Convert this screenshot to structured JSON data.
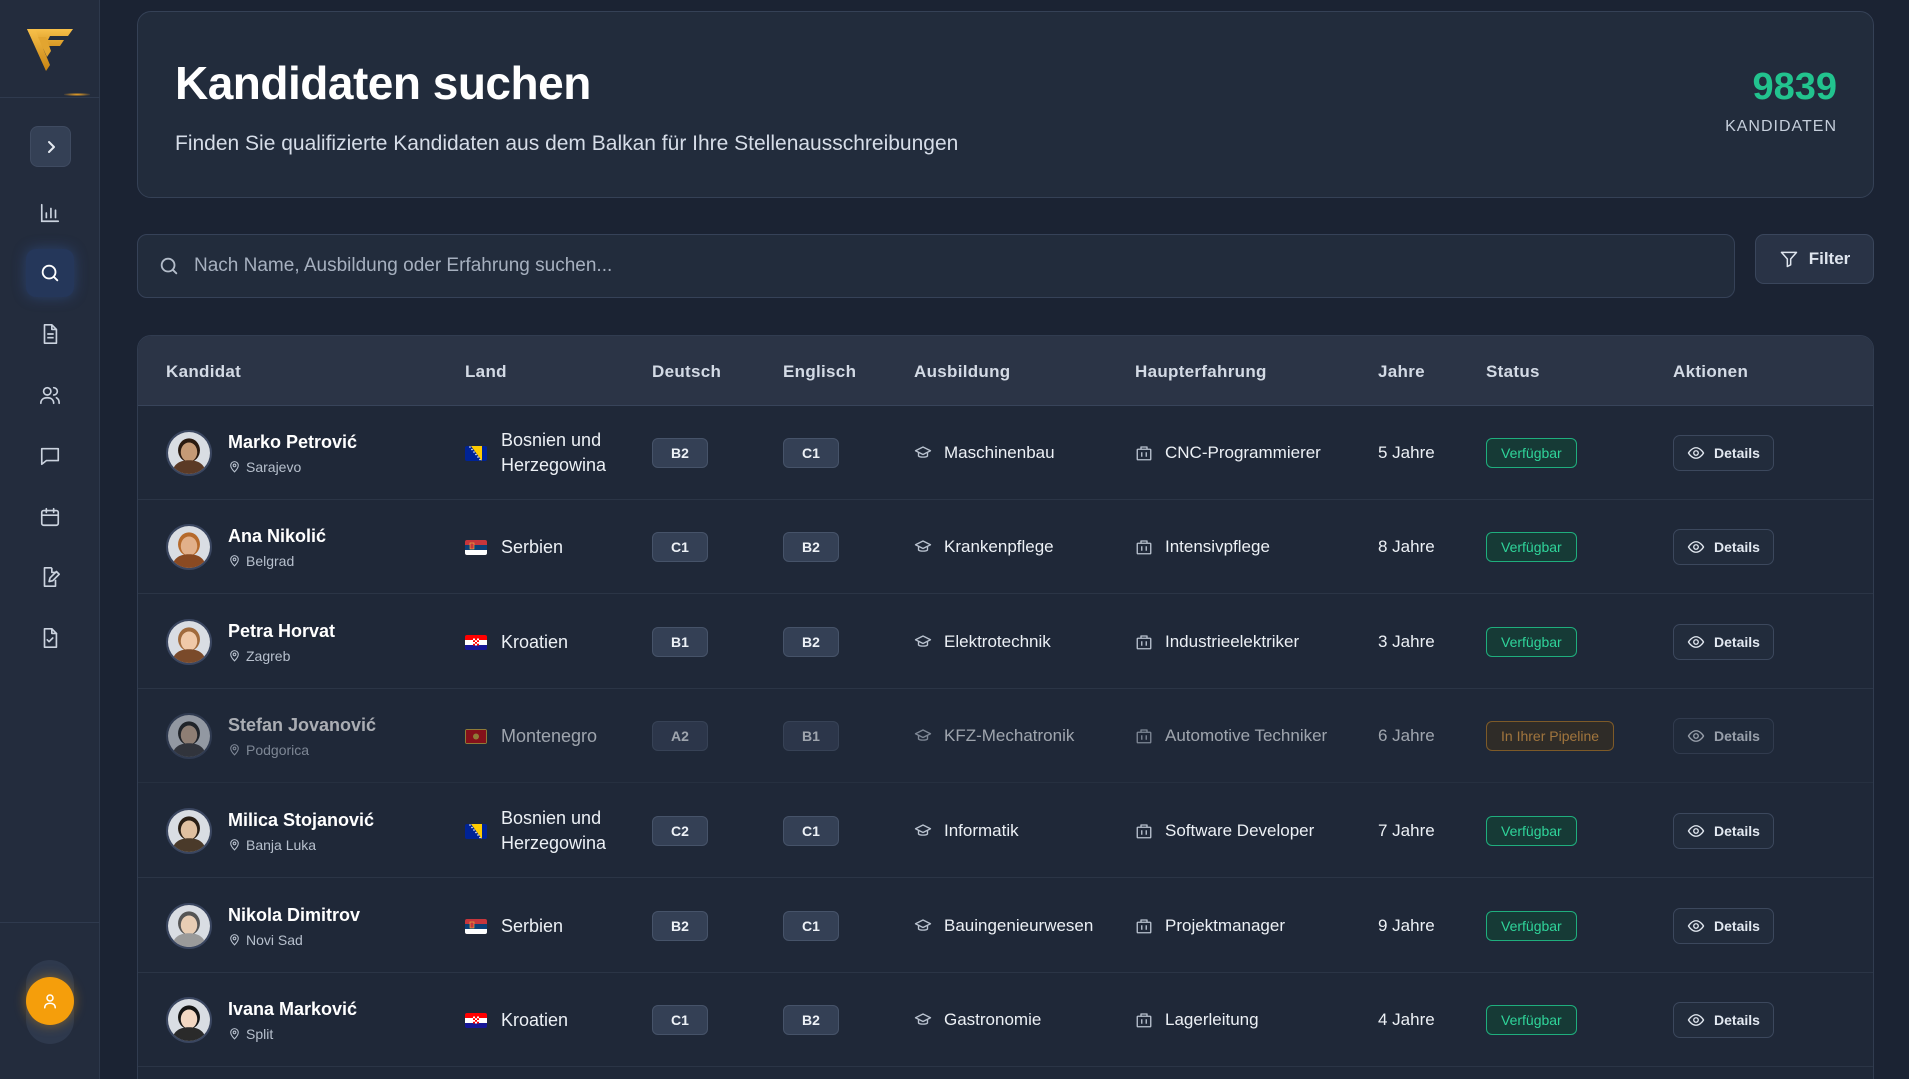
{
  "sidebar": {
    "nav": [
      {
        "name": "sidebar-item-analytics",
        "icon": "bar-chart-icon",
        "active": false
      },
      {
        "name": "sidebar-item-search",
        "icon": "search-icon",
        "active": true
      },
      {
        "name": "sidebar-item-documents",
        "icon": "document-icon",
        "active": false
      },
      {
        "name": "sidebar-item-users",
        "icon": "users-icon",
        "active": false
      },
      {
        "name": "sidebar-item-messages",
        "icon": "message-icon",
        "active": false
      },
      {
        "name": "sidebar-item-calendar",
        "icon": "calendar-icon",
        "active": false
      },
      {
        "name": "sidebar-item-edit",
        "icon": "edit-document-icon",
        "active": false
      },
      {
        "name": "sidebar-item-approved",
        "icon": "document-check-icon",
        "active": false
      }
    ]
  },
  "header": {
    "title": "Kandidaten suchen",
    "subtitle": "Finden Sie qualifizierte Kandidaten aus dem Balkan für Ihre Stellenausschreibungen",
    "count": "9839",
    "count_label": "KANDIDATEN"
  },
  "search": {
    "placeholder": "Nach Name, Ausbildung oder Erfahrung suchen...",
    "value": ""
  },
  "filter": {
    "label": "Filter"
  },
  "table": {
    "headers": {
      "candidate": "Kandidat",
      "country": "Land",
      "german": "Deutsch",
      "english": "Englisch",
      "education": "Ausbildung",
      "experience": "Haupterfahrung",
      "years": "Jahre",
      "status": "Status",
      "actions": "Aktionen"
    },
    "details_label": "Details",
    "rows": [
      {
        "name": "Marko Petrović",
        "city": "Sarajevo",
        "country": "Bosnien und Herzegowina",
        "flag": "ba",
        "german": "B2",
        "english": "C1",
        "education": "Maschinenbau",
        "experience": "CNC-Programmierer",
        "years": "5 Jahre",
        "status": "Verfügbar",
        "status_type": "ok"
      },
      {
        "name": "Ana Nikolić",
        "city": "Belgrad",
        "country": "Serbien",
        "flag": "rs",
        "german": "C1",
        "english": "B2",
        "education": "Krankenpflege",
        "experience": "Intensivpflege",
        "years": "8 Jahre",
        "status": "Verfügbar",
        "status_type": "ok"
      },
      {
        "name": "Petra Horvat",
        "city": "Zagreb",
        "country": "Kroatien",
        "flag": "hr",
        "german": "B1",
        "english": "B2",
        "education": "Elektrotechnik",
        "experience": "Industrieelektriker",
        "years": "3 Jahre",
        "status": "Verfügbar",
        "status_type": "ok"
      },
      {
        "name": "Stefan Jovanović",
        "city": "Podgorica",
        "country": "Montenegro",
        "flag": "me",
        "german": "A2",
        "english": "B1",
        "education": "KFZ-Mechatronik",
        "experience": "Automotive Techniker",
        "years": "6 Jahre",
        "status": "In Ihrer Pipeline",
        "status_type": "pipe"
      },
      {
        "name": "Milica Stojanović",
        "city": "Banja Luka",
        "country": "Bosnien und Herzegowina",
        "flag": "ba",
        "german": "C2",
        "english": "C1",
        "education": "Informatik",
        "experience": "Software Developer",
        "years": "7 Jahre",
        "status": "Verfügbar",
        "status_type": "ok"
      },
      {
        "name": "Nikola Dimitrov",
        "city": "Novi Sad",
        "country": "Serbien",
        "flag": "rs",
        "german": "B2",
        "english": "C1",
        "education": "Bauingenieurwesen",
        "experience": "Projektmanager",
        "years": "9 Jahre",
        "status": "Verfügbar",
        "status_type": "ok"
      },
      {
        "name": "Ivana Marković",
        "city": "Split",
        "country": "Kroatien",
        "flag": "hr",
        "german": "C1",
        "english": "B2",
        "education": "Gastronomie",
        "experience": "Lagerleitung",
        "years": "4 Jahre",
        "status": "Verfügbar",
        "status_type": "ok"
      }
    ]
  },
  "colors": {
    "accent": "#f59e0b",
    "success": "#2fd49a",
    "pipeline": "#f0a441",
    "count": "#22c38e"
  }
}
